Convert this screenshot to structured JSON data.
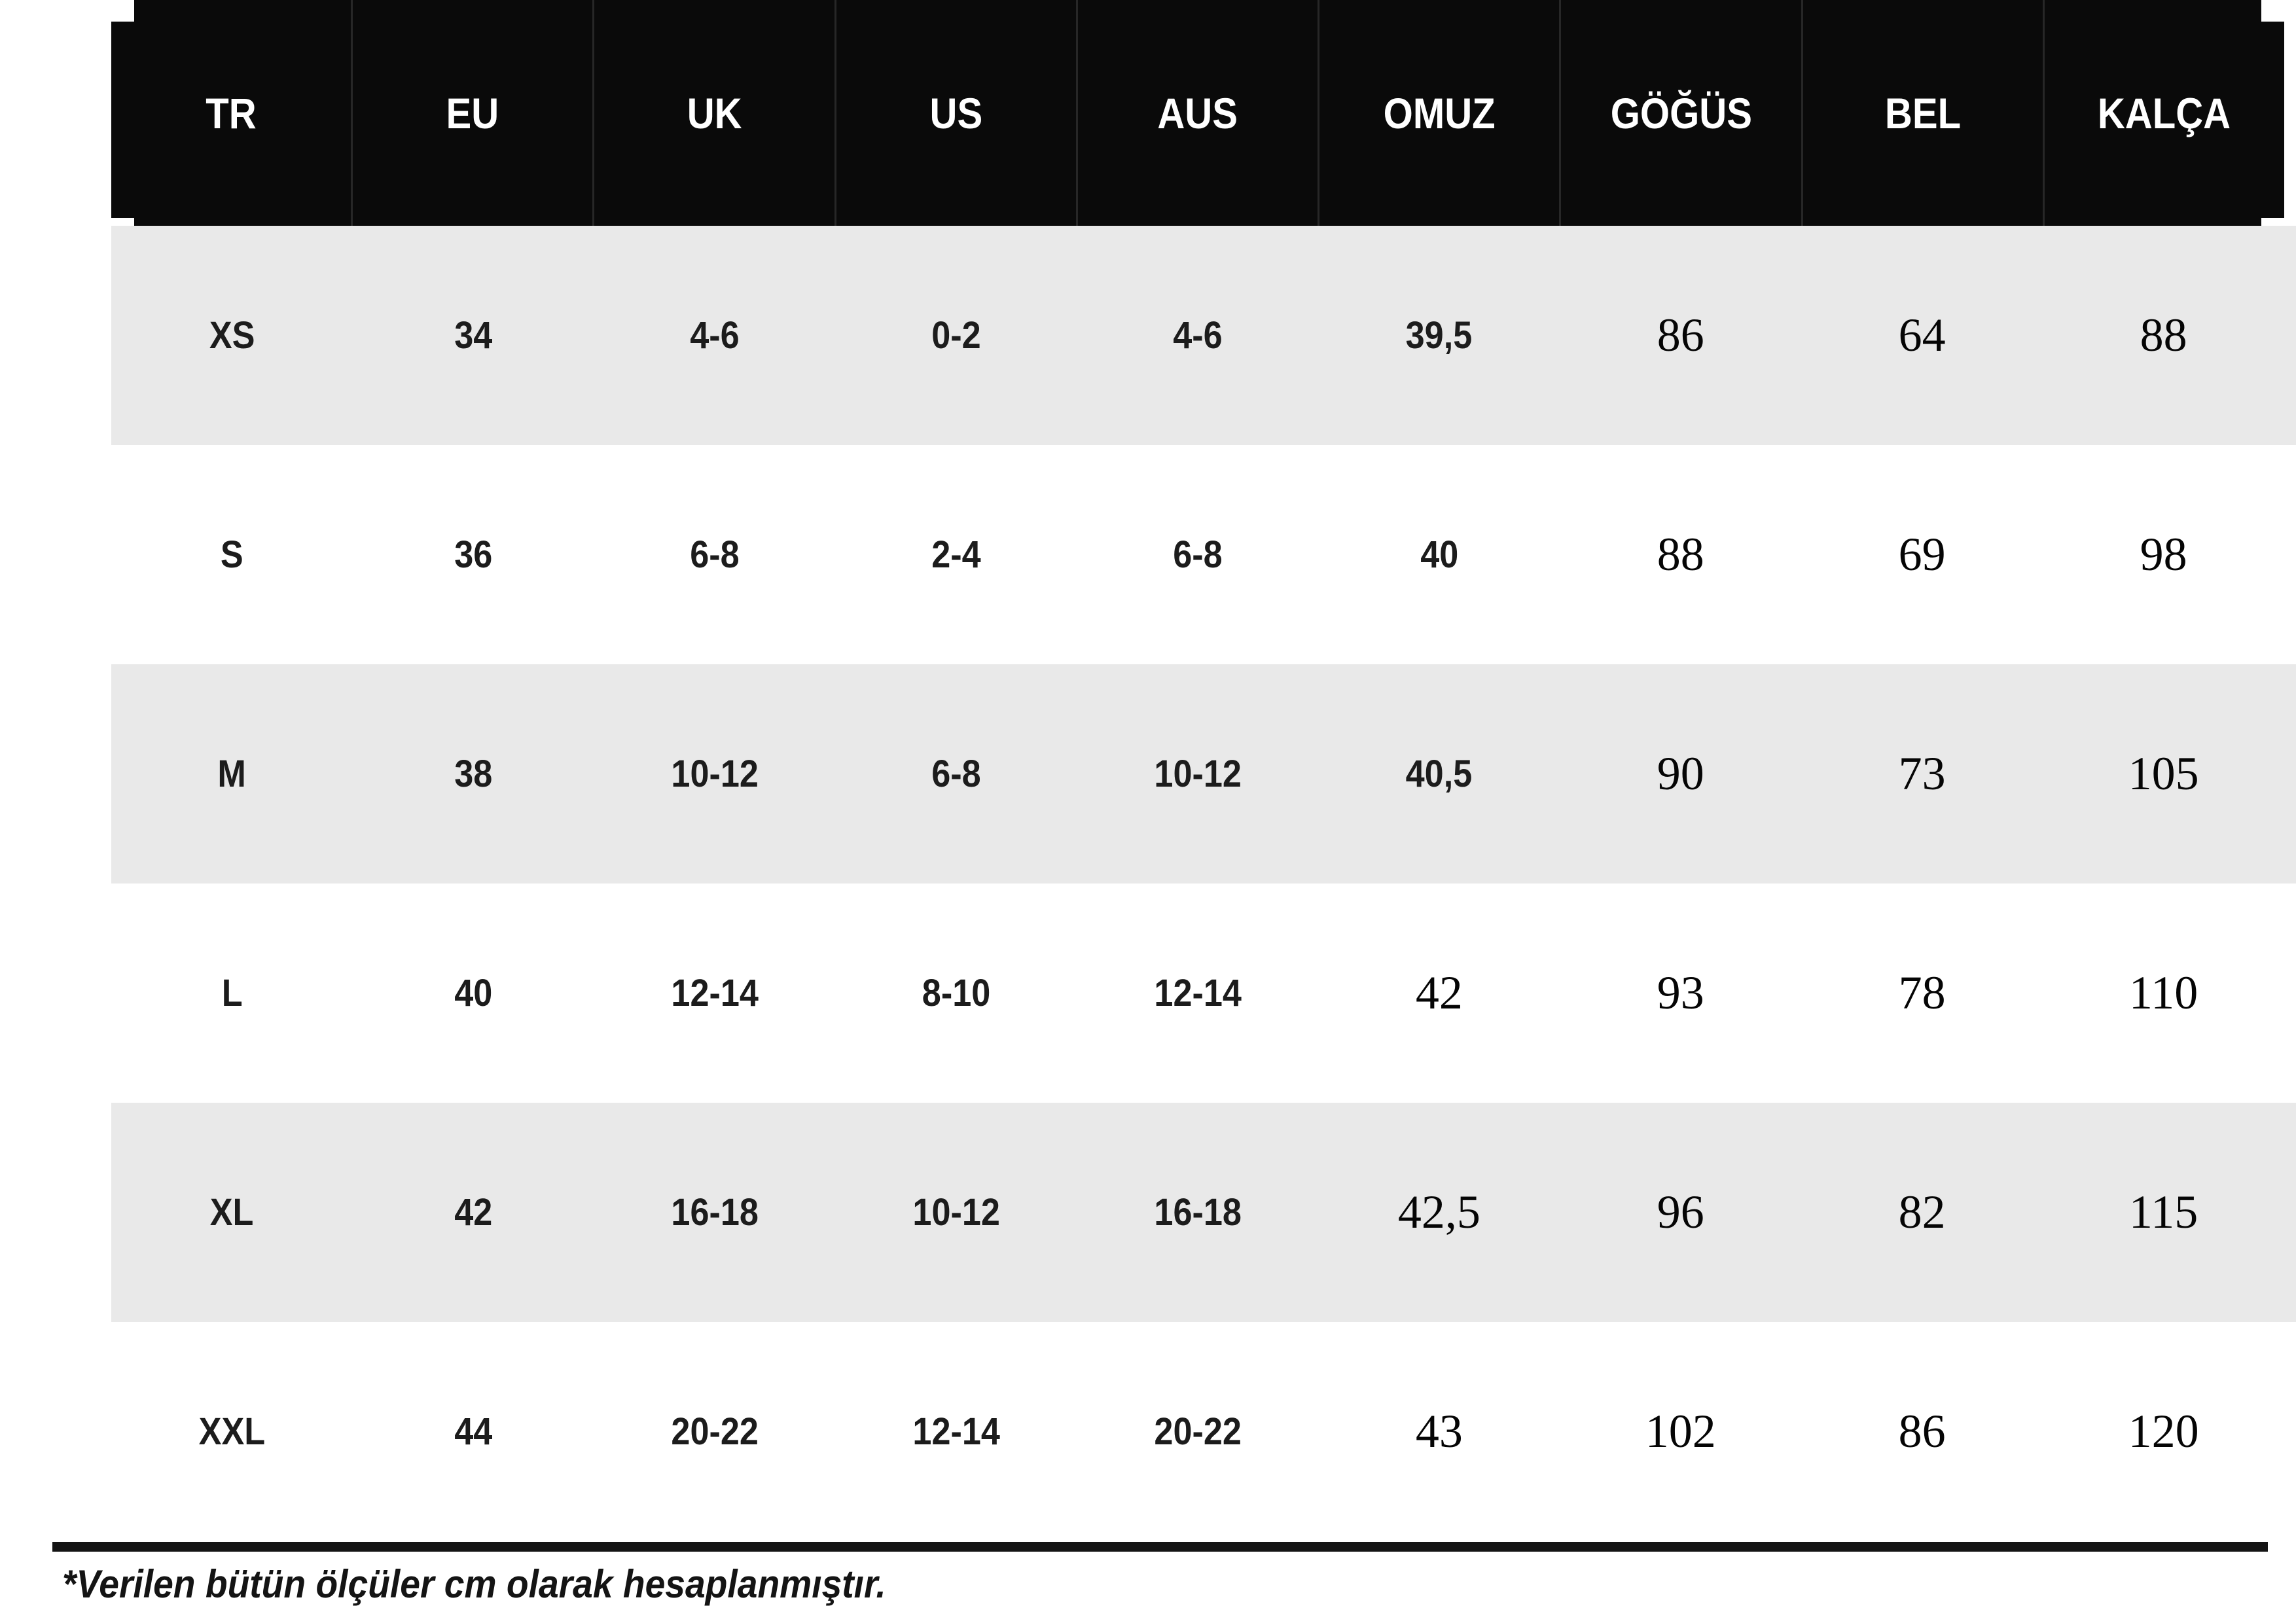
{
  "table": {
    "headers": [
      "TR",
      "EU",
      "UK",
      "US",
      "AUS",
      "OMUZ",
      "GÖĞÜS",
      "BEL",
      "KALÇA"
    ],
    "rows": [
      [
        "XS",
        "34",
        "4-6",
        "0-2",
        "4-6",
        "39,5",
        "86",
        "64",
        "88"
      ],
      [
        "S",
        "36",
        "6-8",
        "2-4",
        "6-8",
        "40",
        "88",
        "69",
        "98"
      ],
      [
        "M",
        "38",
        "10-12",
        "6-8",
        "10-12",
        "40,5",
        "90",
        "73",
        "105"
      ],
      [
        "L",
        "40",
        "12-14",
        "8-10",
        "12-14",
        "42",
        "93",
        "78",
        "110"
      ],
      [
        "XL",
        "42",
        "16-18",
        "10-12",
        "16-18",
        "42,5",
        "96",
        "82",
        "115"
      ],
      [
        "XXL",
        "44",
        "20-22",
        "12-14",
        "20-22",
        "43",
        "102",
        "86",
        "120"
      ]
    ]
  },
  "footnote": {
    "text": "*Verilen bütün ölçüler cm olarak hesaplanmıştır."
  },
  "colors": {
    "header_bg": "#0a0a0a",
    "header_text": "#ffffff",
    "stripe": "#e9e9e9",
    "body_text": "#1c1c1c",
    "rule": "#141414"
  }
}
